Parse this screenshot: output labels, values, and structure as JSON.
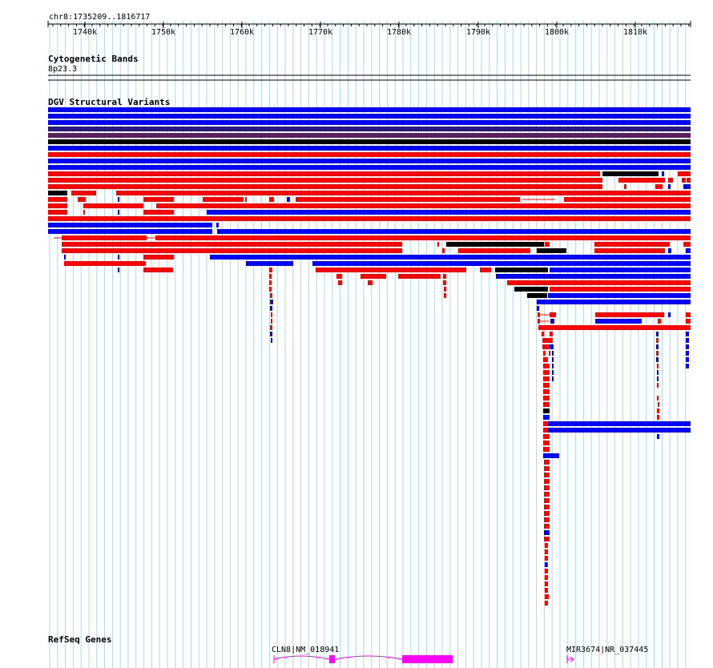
{
  "coords": "chr8:1735209..1816717",
  "ruler": {
    "ticks": [
      "1740k",
      "1750k",
      "1760k",
      "1770k",
      "1780k",
      "1790k",
      "1800k",
      "1810k"
    ]
  },
  "tracks": {
    "cytoband": {
      "title": "Cytogenetic Bands",
      "band": "8p23.3"
    },
    "dgv": {
      "title": "DGV Structural Variants"
    },
    "refseq": {
      "title": "RefSeq Genes",
      "genes": [
        {
          "label": "CLN8|NM_018941"
        },
        {
          "label": "MIR3674|NR_037445"
        }
      ]
    }
  },
  "colors": {
    "grid": "#add8e6",
    "gain": "#0000ff",
    "loss": "#ff0000",
    "both": "#000000",
    "gene": "#ff00ff"
  }
}
